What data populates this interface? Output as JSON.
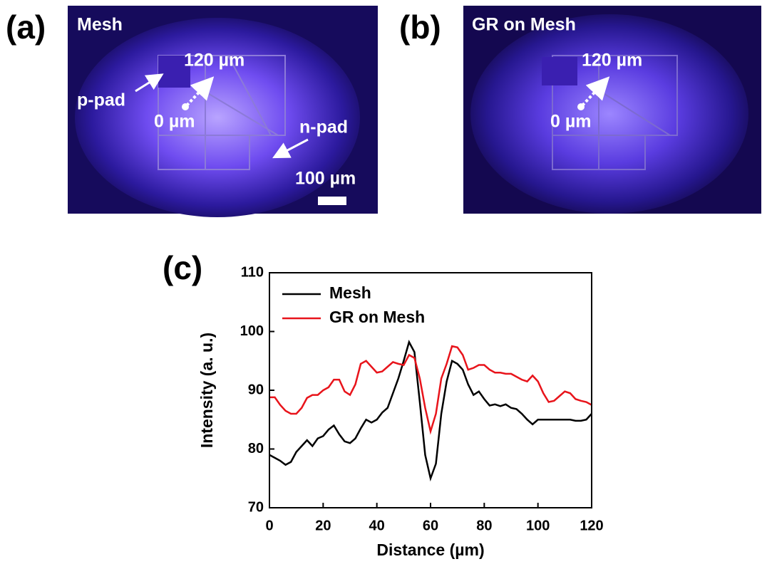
{
  "images": {
    "a": {
      "label": "(a)",
      "title": "Mesh",
      "top": "120 µm",
      "p_pad": "p-pad",
      "zero": "0 µm",
      "n_pad": "n-pad",
      "scale": "100 µm"
    },
    "b": {
      "label": "(b)",
      "title": "GR on Mesh",
      "top": "120 µm",
      "zero": "0 µm"
    }
  },
  "chart_data": {
    "type": "line",
    "label": "(c)",
    "x_label": "Distance (µm)",
    "y_label": "Intensity (a. u.)",
    "x": [
      0,
      2,
      4,
      6,
      8,
      10,
      12,
      14,
      16,
      18,
      20,
      22,
      24,
      26,
      28,
      30,
      32,
      34,
      36,
      38,
      40,
      42,
      44,
      46,
      48,
      50,
      52,
      54,
      56,
      58,
      60,
      62,
      64,
      66,
      68,
      70,
      72,
      74,
      76,
      78,
      80,
      82,
      84,
      86,
      88,
      90,
      92,
      94,
      96,
      98,
      100,
      102,
      104,
      106,
      108,
      110,
      112,
      114,
      116,
      118,
      120
    ],
    "series": [
      {
        "name": "Mesh",
        "color": "#000000",
        "values": [
          79,
          78.5,
          78,
          77.3,
          77.8,
          79.5,
          80.5,
          81.5,
          80.5,
          81.8,
          82.2,
          83.3,
          84,
          82.5,
          81.3,
          81,
          81.8,
          83.5,
          85,
          84.5,
          85,
          86.2,
          87,
          89.5,
          92,
          95,
          98.2,
          96.5,
          88,
          79,
          75,
          77.5,
          86,
          91.5,
          95,
          94.5,
          93.5,
          91,
          89.2,
          89.8,
          88.5,
          87.4,
          87.6,
          87.3,
          87.6,
          87,
          86.8,
          86,
          85,
          84.2,
          85,
          85,
          85,
          85,
          85,
          85,
          85,
          84.8,
          84.8,
          85,
          86
        ]
      },
      {
        "name": "GR on Mesh",
        "color": "#e8141b",
        "values": [
          88.8,
          88.8,
          87.5,
          86.5,
          86,
          86,
          87,
          88.7,
          89.2,
          89.2,
          90,
          90.5,
          91.8,
          91.8,
          89.8,
          89.2,
          91,
          94.5,
          95,
          94,
          93,
          93.2,
          94,
          94.8,
          94.5,
          94.3,
          96,
          95.5,
          92,
          87,
          83,
          86,
          92,
          94.5,
          97.5,
          97.3,
          96,
          93.5,
          93.8,
          94.3,
          94.3,
          93.5,
          93,
          93,
          92.8,
          92.8,
          92.3,
          91.8,
          91.5,
          92.5,
          91.5,
          89.5,
          88,
          88.2,
          89,
          89.8,
          89.5,
          88.5,
          88.2,
          88,
          87.5
        ]
      }
    ],
    "xlim": [
      0,
      120
    ],
    "xticks": [
      0,
      20,
      40,
      60,
      80,
      100,
      120
    ],
    "ylim": [
      70,
      110
    ],
    "yticks": [
      70,
      80,
      90,
      100,
      110
    ],
    "legend": "upper-left"
  }
}
